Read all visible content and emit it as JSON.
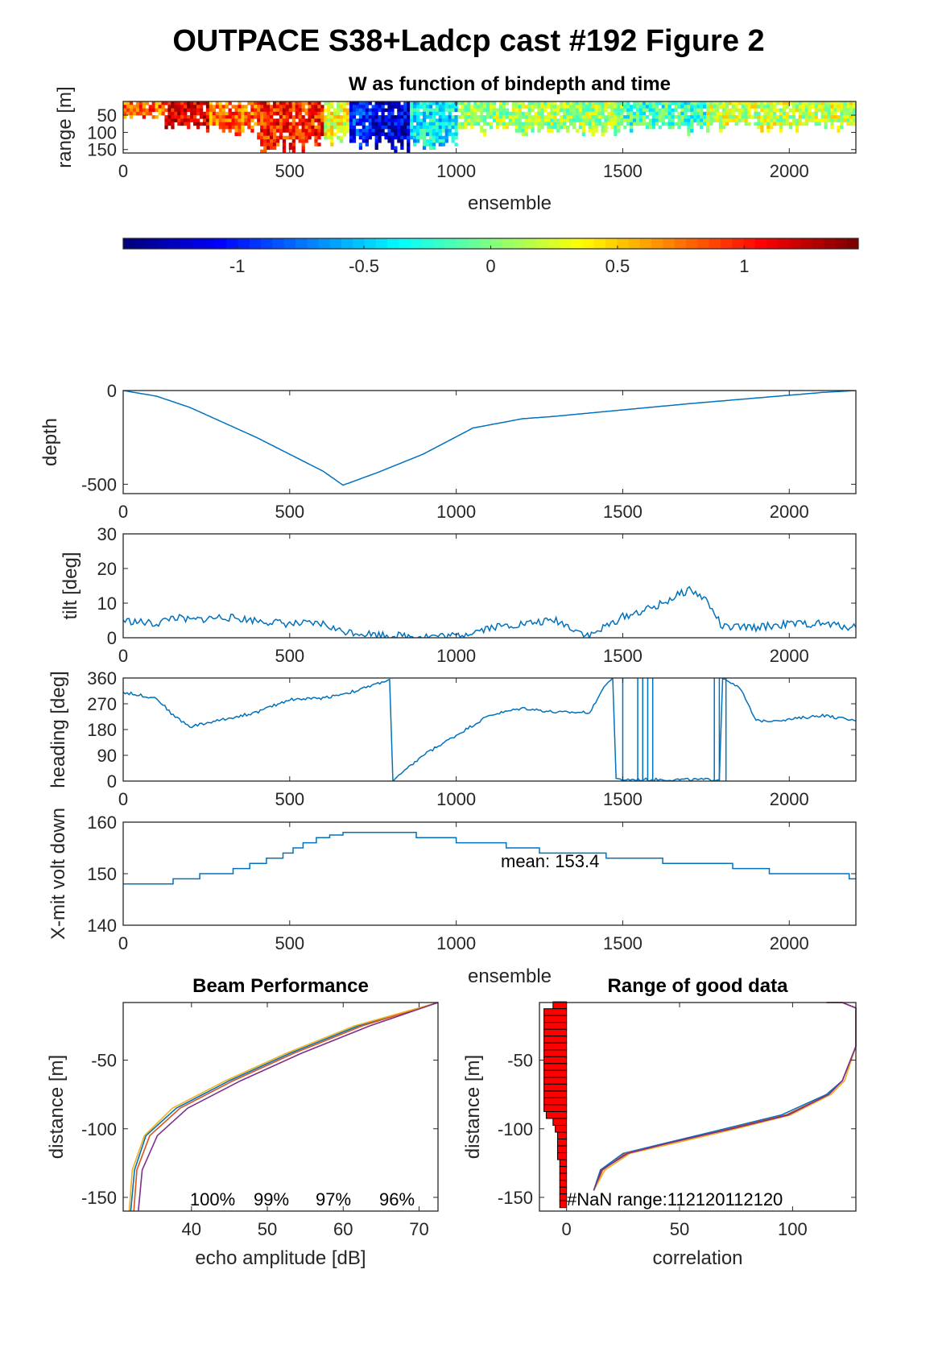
{
  "figure_title": "OUTPACE S38+Ladcp cast #192 Figure 2",
  "colors": {
    "line": "#0072BD",
    "axis": "#262626",
    "bar": "#ff0000",
    "beams": [
      "#0072BD",
      "#D95319",
      "#EDB120",
      "#7E2F8E"
    ]
  },
  "chart_data": [
    {
      "id": "w_image",
      "type": "heatmap",
      "title": "W as function of bindepth and time",
      "xlabel": "ensemble",
      "ylabel": "range [m]",
      "xlim": [
        0,
        2200
      ],
      "ylim": [
        160,
        10
      ],
      "xticks": [
        "0",
        "500",
        "1000",
        "1500",
        "2000"
      ],
      "yticks": [
        "50",
        "100",
        "150"
      ],
      "colormap": "jet",
      "clim": [
        -1.45,
        1.45
      ],
      "colorbar_ticks": [
        "-1",
        "-0.5",
        "0",
        "0.5",
        "1"
      ],
      "segments": [
        {
          "x0": 0,
          "x1": 120,
          "w": 0.8,
          "depth": 60
        },
        {
          "x0": 120,
          "x1": 260,
          "w": 1.2,
          "depth": 90
        },
        {
          "x0": 260,
          "x1": 400,
          "w": 0.8,
          "depth": 100
        },
        {
          "x0": 400,
          "x1": 600,
          "w": 1.0,
          "depth": 150
        },
        {
          "x0": 600,
          "x1": 680,
          "w": 0.3,
          "depth": 130
        },
        {
          "x0": 680,
          "x1": 750,
          "w": -1.0,
          "depth": 140
        },
        {
          "x0": 750,
          "x1": 860,
          "w": -1.2,
          "depth": 150
        },
        {
          "x0": 860,
          "x1": 1000,
          "w": -0.4,
          "depth": 140
        },
        {
          "x0": 1000,
          "x1": 1500,
          "w": 0.1,
          "depth": 100
        },
        {
          "x0": 1500,
          "x1": 1750,
          "w": -0.2,
          "depth": 100
        },
        {
          "x0": 1750,
          "x1": 2200,
          "w": 0.2,
          "depth": 90
        }
      ]
    },
    {
      "id": "depth_ts",
      "type": "line",
      "ylabel": "depth",
      "xlim": [
        0,
        2200
      ],
      "ylim": [
        -550,
        0
      ],
      "xticks": [
        "0",
        "500",
        "1000",
        "1500",
        "2000"
      ],
      "yticks": [
        "0",
        "-500"
      ],
      "x": [
        0,
        100,
        200,
        400,
        600,
        660,
        760,
        900,
        1050,
        1200,
        1280,
        1400,
        1700,
        1900,
        2100,
        2200
      ],
      "y": [
        0,
        -30,
        -90,
        -250,
        -430,
        -505,
        -440,
        -340,
        -200,
        -150,
        -140,
        -120,
        -70,
        -40,
        -10,
        0
      ]
    },
    {
      "id": "tilt_ts",
      "type": "line",
      "ylabel": "tilt [deg]",
      "xlim": [
        0,
        2200
      ],
      "ylim": [
        0,
        30
      ],
      "xticks": [
        "0",
        "500",
        "1000",
        "1500",
        "2000"
      ],
      "yticks": [
        "0",
        "10",
        "20",
        "30"
      ],
      "x": [
        0,
        100,
        150,
        200,
        300,
        400,
        500,
        600,
        650,
        750,
        850,
        1000,
        1100,
        1200,
        1300,
        1400,
        1500,
        1600,
        1700,
        1750,
        1800,
        1900,
        2000,
        2100,
        2200
      ],
      "y": [
        5,
        4,
        6,
        5,
        6,
        5,
        4,
        4,
        2,
        1,
        0.5,
        0.5,
        3,
        4,
        5,
        0.5,
        6,
        9,
        14,
        11,
        3,
        3,
        4,
        4,
        3
      ]
    },
    {
      "id": "heading_ts",
      "type": "line",
      "ylabel": "heading [deg]",
      "xlim": [
        0,
        2200
      ],
      "ylim": [
        0,
        360
      ],
      "xticks": [
        "0",
        "500",
        "1000",
        "1500",
        "2000"
      ],
      "yticks": [
        "0",
        "90",
        "180",
        "270",
        "360"
      ],
      "x": [
        0,
        100,
        150,
        200,
        300,
        400,
        500,
        600,
        700,
        800,
        810,
        900,
        1000,
        1100,
        1200,
        1300,
        1400,
        1450,
        1470,
        1480,
        1600,
        1790,
        1800,
        1850,
        1900,
        2000,
        2100,
        2200
      ],
      "y": [
        310,
        290,
        230,
        190,
        215,
        240,
        285,
        290,
        315,
        355,
        0,
        90,
        160,
        230,
        255,
        240,
        240,
        340,
        360,
        5,
        5,
        5,
        360,
        330,
        210,
        215,
        230,
        210
      ]
    },
    {
      "id": "volt_ts",
      "type": "line",
      "ylabel": "X-mit volt down",
      "xlabel": "ensemble",
      "xlim": [
        0,
        2200
      ],
      "ylim": [
        140,
        160
      ],
      "xticks": [
        "0",
        "500",
        "1000",
        "1500",
        "2000"
      ],
      "yticks": [
        "140",
        "150",
        "160"
      ],
      "annotation": "mean: 153.4",
      "x": [
        0,
        150,
        230,
        330,
        380,
        430,
        480,
        510,
        540,
        580,
        620,
        660,
        880,
        1000,
        1150,
        1250,
        1450,
        1620,
        1830,
        1940,
        2180,
        2200
      ],
      "y": [
        148,
        149,
        150,
        151,
        152,
        153,
        154,
        155,
        156,
        157,
        157.5,
        158,
        157,
        156,
        155,
        154,
        153,
        152,
        151,
        150,
        149,
        149
      ]
    },
    {
      "id": "beam_perf",
      "type": "line",
      "title": "Beam Performance",
      "xlabel": "echo amplitude [dB]",
      "ylabel": "distance [m]",
      "xlim": [
        31,
        72.5
      ],
      "ylim": [
        -160,
        -8
      ],
      "xticks": [
        "40",
        "50",
        "60",
        "70"
      ],
      "yticks": [
        "-50",
        "-100",
        "-150"
      ],
      "beam_pct": [
        "100%",
        "99%",
        "97%",
        "96%"
      ],
      "series": [
        {
          "x": [
            32,
            32.5,
            34,
            38,
            45,
            53,
            62,
            72.5
          ],
          "y": [
            -160,
            -130,
            -105,
            -85,
            -65,
            -45,
            -25,
            -8
          ]
        },
        {
          "x": [
            32.4,
            32.8,
            34.5,
            38.5,
            45.5,
            53.5,
            62.5,
            72.5
          ],
          "y": [
            -160,
            -130,
            -105,
            -85,
            -65,
            -45,
            -25,
            -8
          ]
        },
        {
          "x": [
            31.8,
            32.2,
            33.8,
            37.5,
            44.5,
            52.5,
            61.5,
            72.5
          ],
          "y": [
            -160,
            -130,
            -105,
            -85,
            -65,
            -45,
            -25,
            -8
          ]
        },
        {
          "x": [
            33,
            33.5,
            35.5,
            39.5,
            46.5,
            54.5,
            63.5,
            72.5
          ],
          "y": [
            -160,
            -130,
            -105,
            -85,
            -65,
            -45,
            -25,
            -8
          ]
        }
      ]
    },
    {
      "id": "range_good",
      "type": "line",
      "title": "Range of good data",
      "xlabel": "correlation",
      "ylabel": "distance [m]",
      "xlim": [
        -12,
        128
      ],
      "ylim": [
        -160,
        -8
      ],
      "xticks": [
        "0",
        "50",
        "100"
      ],
      "yticks": [
        "-50",
        "-100",
        "-150"
      ],
      "annotation": "#NaN range:112120112120",
      "series": [
        {
          "x": [
            12,
            15,
            25,
            45,
            70,
            95,
            115,
            122,
            128,
            128,
            122,
            115
          ],
          "y": [
            -145,
            -130,
            -118,
            -110,
            -100,
            -90,
            -75,
            -65,
            -40,
            -12,
            -8,
            -8
          ]
        },
        {
          "x": [
            12,
            16,
            26,
            47,
            72,
            97,
            116,
            122,
            128,
            128,
            122,
            115
          ],
          "y": [
            -145,
            -130,
            -118,
            -110,
            -100,
            -90,
            -75,
            -65,
            -40,
            -12,
            -8,
            -8
          ]
        },
        {
          "x": [
            12,
            17,
            28,
            49,
            75,
            99,
            117,
            123,
            128,
            128,
            122,
            115
          ],
          "y": [
            -145,
            -130,
            -118,
            -110,
            -100,
            -90,
            -75,
            -65,
            -40,
            -12,
            -8,
            -8
          ]
        },
        {
          "x": [
            12,
            15.5,
            27,
            46,
            73,
            98,
            116,
            122,
            128,
            128,
            122,
            115
          ],
          "y": [
            -145,
            -130,
            -118,
            -110,
            -100,
            -90,
            -75,
            -65,
            -40,
            -12,
            -8,
            -8
          ]
        }
      ],
      "bars": [
        {
          "y": -10,
          "len": 6
        },
        {
          "y": -15,
          "len": 10
        },
        {
          "y": -20,
          "len": 10
        },
        {
          "y": -25,
          "len": 10
        },
        {
          "y": -30,
          "len": 10
        },
        {
          "y": -35,
          "len": 10
        },
        {
          "y": -40,
          "len": 10
        },
        {
          "y": -45,
          "len": 10
        },
        {
          "y": -50,
          "len": 10
        },
        {
          "y": -55,
          "len": 10
        },
        {
          "y": -60,
          "len": 10
        },
        {
          "y": -65,
          "len": 10
        },
        {
          "y": -70,
          "len": 10
        },
        {
          "y": -75,
          "len": 10
        },
        {
          "y": -80,
          "len": 10
        },
        {
          "y": -85,
          "len": 10
        },
        {
          "y": -90,
          "len": 9
        },
        {
          "y": -95,
          "len": 6
        },
        {
          "y": -100,
          "len": 5
        },
        {
          "y": -105,
          "len": 4
        },
        {
          "y": -110,
          "len": 4
        },
        {
          "y": -115,
          "len": 4
        },
        {
          "y": -120,
          "len": 4
        },
        {
          "y": -125,
          "len": 3
        },
        {
          "y": -130,
          "len": 3
        },
        {
          "y": -135,
          "len": 3
        },
        {
          "y": -140,
          "len": 3
        },
        {
          "y": -145,
          "len": 3
        },
        {
          "y": -150,
          "len": 3
        },
        {
          "y": -155,
          "len": 3
        }
      ]
    }
  ]
}
